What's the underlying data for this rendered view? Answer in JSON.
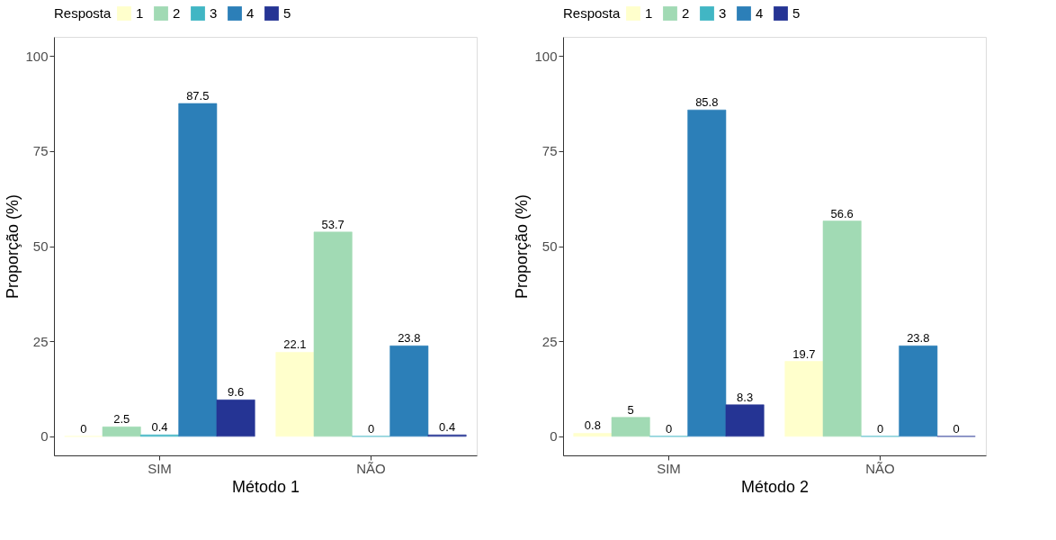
{
  "chart_data": [
    {
      "type": "bar",
      "xlabel": "Método 1",
      "ylabel": "Proporção (%)",
      "legend_title": "Resposta",
      "legend": "top",
      "grid": false,
      "data_labels": true,
      "categories": [
        "SIM",
        "NÃO"
      ],
      "ylim": [
        -5,
        105
      ],
      "yticks": [
        0,
        25,
        50,
        75,
        100
      ],
      "series": [
        {
          "name": "1",
          "color": "#ffffcc",
          "values": [
            0,
            22.1
          ]
        },
        {
          "name": "2",
          "color": "#a1dab4",
          "values": [
            2.5,
            53.7
          ]
        },
        {
          "name": "3",
          "color": "#41b6c4",
          "values": [
            0.4,
            0
          ]
        },
        {
          "name": "4",
          "color": "#2c7fb8",
          "values": [
            87.5,
            23.8
          ]
        },
        {
          "name": "5",
          "color": "#253494",
          "values": [
            9.6,
            0.4
          ]
        }
      ]
    },
    {
      "type": "bar",
      "xlabel": "Método 2",
      "ylabel": "Proporção (%)",
      "legend_title": "Resposta",
      "legend": "top",
      "grid": false,
      "data_labels": true,
      "categories": [
        "SIM",
        "NÃO"
      ],
      "ylim": [
        -5,
        105
      ],
      "yticks": [
        0,
        25,
        50,
        75,
        100
      ],
      "series": [
        {
          "name": "1",
          "color": "#ffffcc",
          "values": [
            0.8,
            19.7
          ]
        },
        {
          "name": "2",
          "color": "#a1dab4",
          "values": [
            5,
            56.6
          ]
        },
        {
          "name": "3",
          "color": "#41b6c4",
          "values": [
            0,
            0
          ]
        },
        {
          "name": "4",
          "color": "#2c7fb8",
          "values": [
            85.8,
            23.8
          ]
        },
        {
          "name": "5",
          "color": "#253494",
          "values": [
            8.3,
            0
          ]
        }
      ]
    }
  ]
}
